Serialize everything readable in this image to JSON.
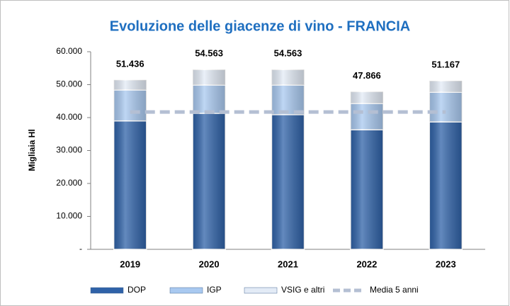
{
  "chart_data": {
    "type": "stacked_bar",
    "title": "Evoluzione delle giacenze di vino - FRANCIA",
    "y_label": "Migliaia Hl",
    "categories": [
      "2019",
      "2020",
      "2021",
      "2022",
      "2023"
    ],
    "series": [
      {
        "name": "DOP",
        "color": "#2f62a8",
        "values": [
          39000,
          41300,
          40900,
          36300,
          38700
        ]
      },
      {
        "name": "IGP",
        "color": "#a9c9f0",
        "values": [
          9400,
          8600,
          9000,
          8000,
          9000
        ]
      },
      {
        "name": "VSIG e altri",
        "color": "#e3ebf6",
        "values": [
          3036,
          4663,
          4663,
          3566,
          3467
        ]
      },
      {
        "name": "Media 5 anni",
        "type": "line",
        "color": "#b4bfd3",
        "values": [
          41700,
          41700,
          41700,
          41700,
          41700
        ]
      }
    ],
    "totals": {
      "values": [
        51436,
        54563,
        54563,
        47866,
        51167
      ],
      "value_labels": [
        "51.436",
        "54.563",
        "54.563",
        "47.866",
        "51.167"
      ]
    },
    "ylim": [
      0,
      60000
    ],
    "yticks": [
      {
        "value": 0,
        "label": "-"
      },
      {
        "value": 10000,
        "label": "10.000"
      },
      {
        "value": 20000,
        "label": "20.000"
      },
      {
        "value": 30000,
        "label": "30.000"
      },
      {
        "value": 40000,
        "label": "40.000"
      },
      {
        "value": 50000,
        "label": "50.000"
      },
      {
        "value": 60000,
        "label": "60.000"
      }
    ],
    "legend": "bottom"
  }
}
